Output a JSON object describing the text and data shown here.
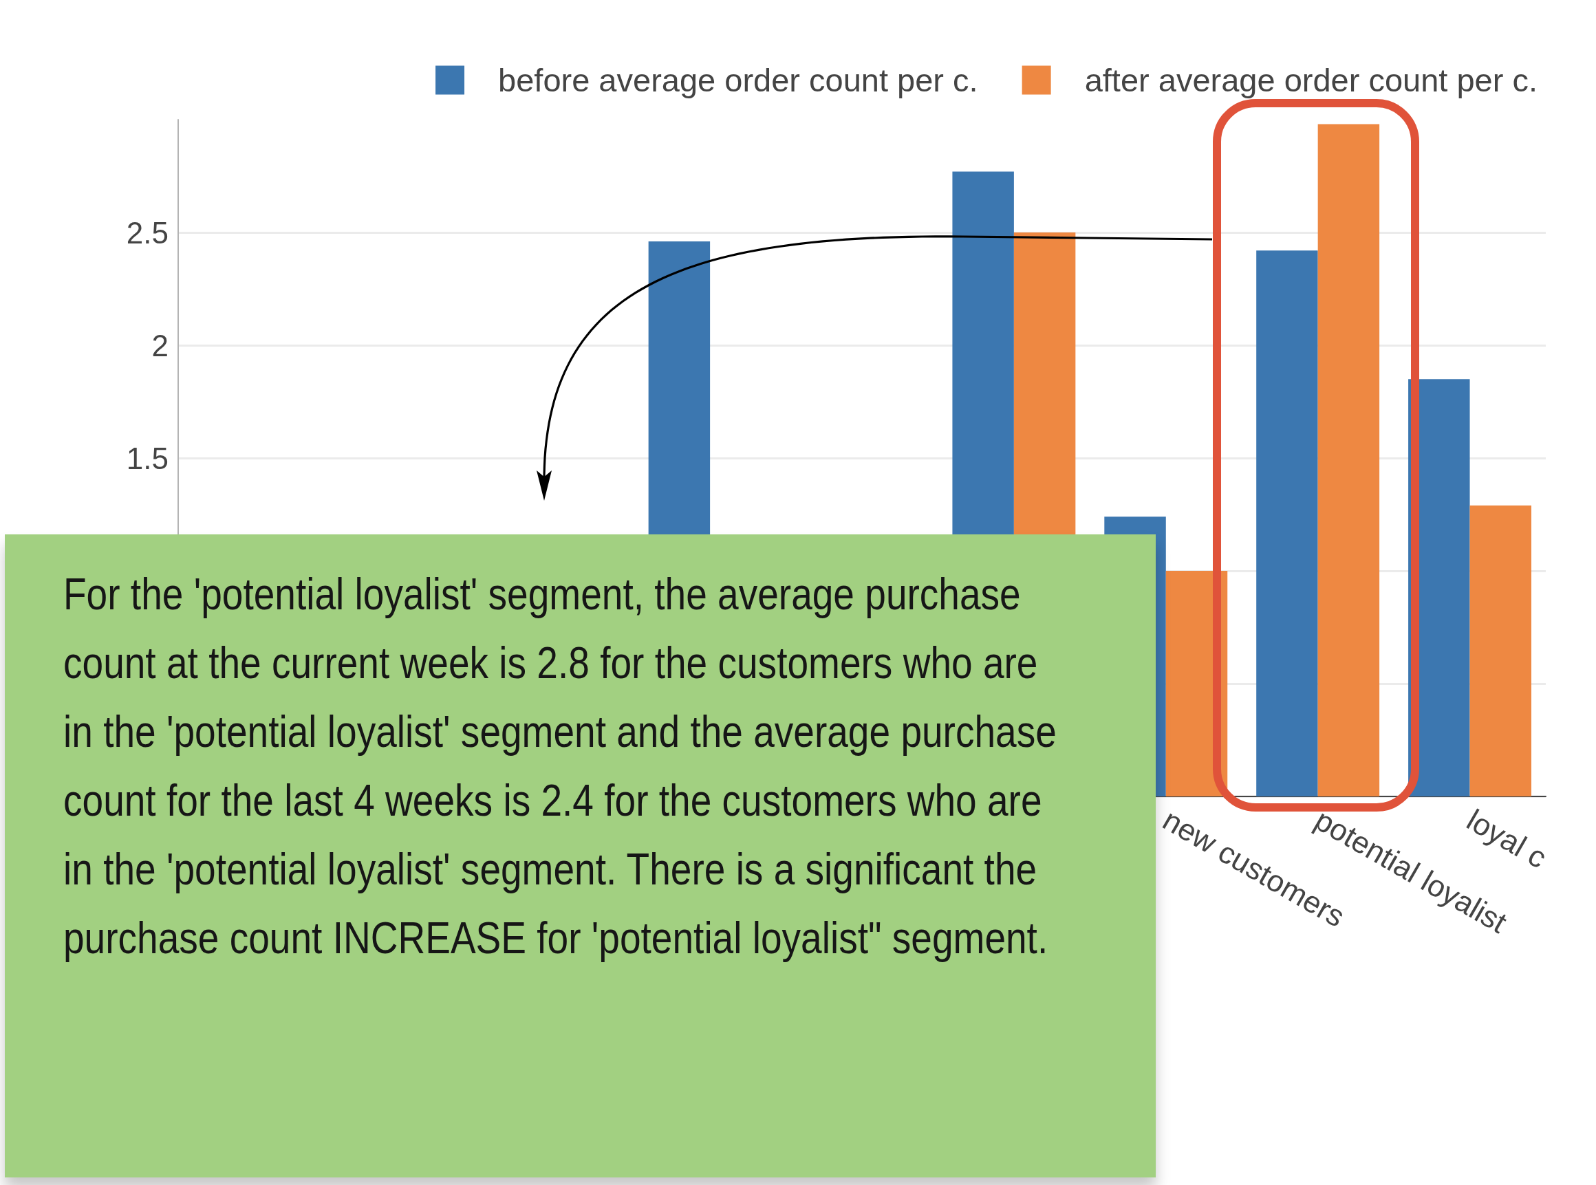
{
  "chart_data": {
    "type": "bar",
    "categories": [
      null,
      null,
      null,
      null,
      null,
      null,
      "new customers",
      "potential loyalist",
      "loyal c"
    ],
    "series": [
      {
        "name": "before average order count per c.",
        "color": "#3c77b0",
        "values": [
          null,
          null,
          null,
          2.46,
          null,
          2.77,
          1.24,
          2.42,
          1.85
        ]
      },
      {
        "name": "after average order count per c.",
        "color": "#ee8842",
        "values": [
          null,
          null,
          null,
          null,
          null,
          2.5,
          1.0,
          2.98,
          1.29
        ]
      }
    ],
    "ylim": [
      0,
      3
    ],
    "yticks": [
      {
        "value": 0,
        "label": null
      },
      {
        "value": 0.5,
        "label": null
      },
      {
        "value": 1,
        "label": null
      },
      1.5,
      2,
      2.5
    ],
    "grid": "y",
    "legend": "top",
    "annotations": [
      "For the 'potential loyalist' segment, the average purchase count at the current week is 2.8 for the customers who are in the 'potential loyalist' segment and the average purchase count for the last 4 weeks is 2.4 for the customers who are in the 'potential loyalist' segment. There is a significant the purchase count INCREASE for 'potential loyalist\" segment."
    ]
  }
}
